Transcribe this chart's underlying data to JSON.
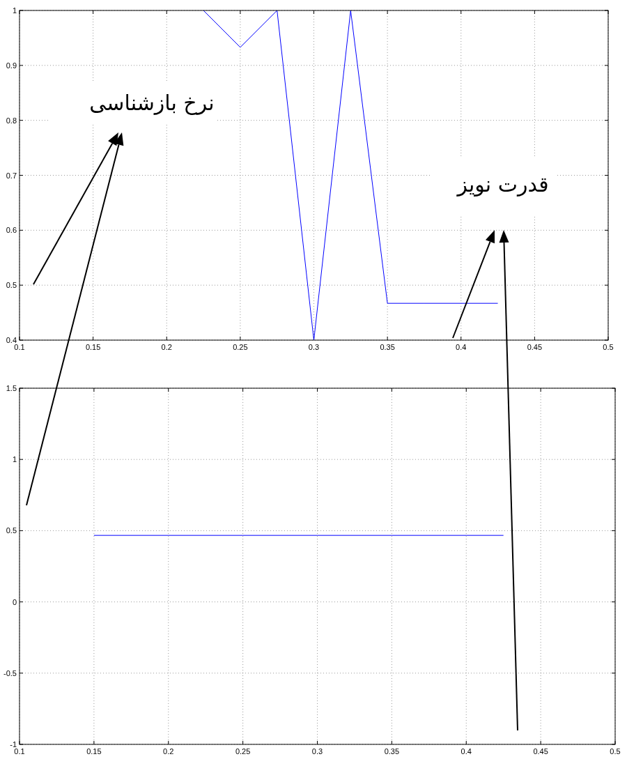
{
  "chart_data": [
    {
      "type": "line",
      "x": [
        0.225,
        0.25,
        0.275,
        0.3,
        0.325,
        0.35,
        0.375,
        0.4,
        0.425
      ],
      "series": [
        {
          "color": "#0000ff",
          "values": [
            1,
            0.933,
            1,
            0.4,
            1,
            0.467,
            0.467,
            0.467,
            0.467
          ]
        }
      ],
      "xlim": [
        0.1,
        0.5
      ],
      "xticks": [
        0.1,
        0.15,
        0.2,
        0.25,
        0.3,
        0.35,
        0.4,
        0.45,
        0.5
      ],
      "ylim": [
        0.4,
        1
      ],
      "yticks": [
        0.4,
        0.5,
        0.6,
        0.7,
        0.8,
        0.9,
        1
      ],
      "grid": true,
      "annotations": [
        "نرخ بازشناسی",
        "قدرت نویز"
      ]
    },
    {
      "type": "line",
      "x": [
        0.15,
        0.2,
        0.25,
        0.3,
        0.35,
        0.4,
        0.425
      ],
      "series": [
        {
          "color": "#0000ff",
          "values": [
            0.467,
            0.467,
            0.467,
            0.467,
            0.467,
            0.467,
            0.467
          ]
        }
      ],
      "xlim": [
        0.1,
        0.5
      ],
      "xticks": [
        0.1,
        0.15,
        0.2,
        0.25,
        0.3,
        0.35,
        0.4,
        0.45,
        0.5
      ],
      "ylim": [
        -1,
        1.5
      ],
      "yticks": [
        -1,
        -0.5,
        0,
        0.5,
        1,
        1.5
      ],
      "grid": true
    }
  ]
}
